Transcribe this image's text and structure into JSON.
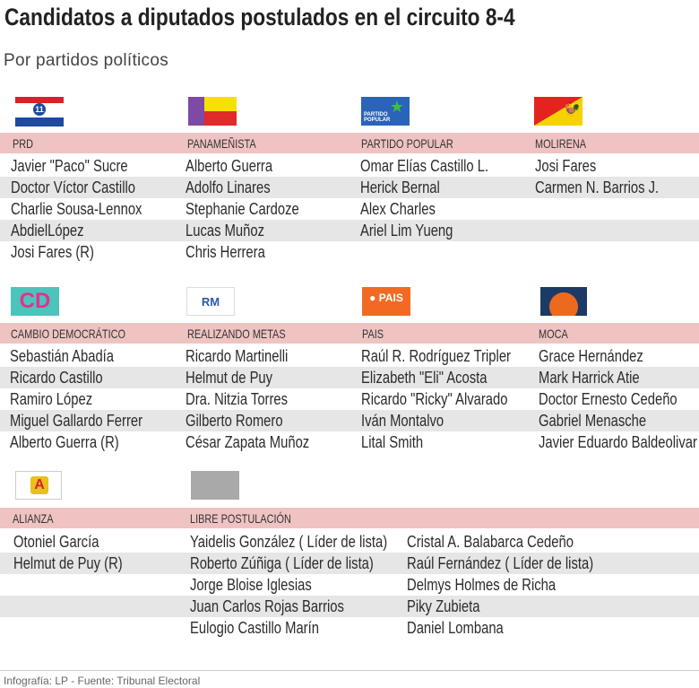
{
  "title": "Candidatos a diputados postulados en el circuito 8-4",
  "subtitle": "Por partidos políticos",
  "sections": [
    {
      "parties": [
        {
          "name": "PRD",
          "logo": "prd-logo",
          "logo_text": "REVOLUCIONARIO 11 DEMOCRÁTICO",
          "candidates": [
            "Javier \"Paco\" Sucre",
            "Doctor Víctor Castillo",
            "Charlie Sousa-Lennox",
            "AbdielLópez",
            "Josi Fares (R)"
          ]
        },
        {
          "name": "PANAMEÑISTA",
          "logo": "panamenista-logo",
          "candidates": [
            "Alberto Guerra",
            "Adolfo Linares",
            "Stephanie Cardoze",
            "Lucas Muñoz",
            "Chris Herrera"
          ]
        },
        {
          "name": "PARTIDO POPULAR",
          "logo": "partido-popular-logo",
          "logo_text": "PARTIDO POPULAR",
          "candidates": [
            "Omar Elías Castillo L.",
            "Herick Bernal",
            "Alex  Charles",
            "Ariel  Lim Yueng"
          ]
        },
        {
          "name": "MOLIRENA",
          "logo": "molirena-logo",
          "logo_text": "MOLIRENA",
          "candidates": [
            "Josi Fares",
            "Carmen N. Barrios J."
          ]
        }
      ]
    },
    {
      "parties": [
        {
          "name": "CAMBIO DEMOCRÁTICO",
          "logo": "cd-logo",
          "logo_text": "CD",
          "candidates": [
            "Sebastián Abadía",
            "Ricardo Castillo",
            "Ramiro López",
            "Miguel Gallardo Ferrer",
            "Alberto Guerra (R)"
          ]
        },
        {
          "name": "REALIZANDO METAS",
          "logo": "rm-logo",
          "logo_text": "RM",
          "candidates": [
            "Ricardo Martinelli",
            "Helmut de Puy",
            "Dra. Nitzia Torres",
            "Gilberto Romero",
            "César Zapata Muñoz"
          ]
        },
        {
          "name": "PAIS",
          "logo": "pais-logo",
          "logo_text": "PAIS",
          "candidates": [
            "Raúl R. Rodríguez Tripler",
            "Elizabeth \"Eli\" Acosta",
            "Ricardo \"Ricky\" Alvarado",
            "Iván Montalvo",
            "Lital Smith"
          ]
        },
        {
          "name": "MOCA",
          "logo": "moca-logo",
          "logo_text": "OTRO CAMINO",
          "candidates": [
            "Grace Hernández",
            "Mark Harrick Atie",
            "Doctor Ernesto Cedeño",
            "Gabriel Menasche",
            "Javier Eduardo Baldeolivar"
          ]
        }
      ]
    },
    {
      "parties": [
        {
          "name": "ALIANZA",
          "logo": "alianza-logo",
          "candidates": [
            "Otoniel García",
            "Helmut de Puy (R)"
          ]
        },
        {
          "name": "LIBRE POSTULACIÓN",
          "logo": "libre-postulacion-logo",
          "candidates": [
            "Yaidelis González ( Líder de lista)",
            "Roberto Zúñiga ( Líder de lista)",
            "Jorge Bloise Iglesias",
            "Juan Carlos Rojas Barrios",
            "Eulogio Castillo Marín"
          ],
          "candidates_col2": [
            "Cristal A. Balabarca Cedeño",
            "Raúl Fernández ( Líder de lista)",
            "Delmys Holmes de Richa",
            "Piky  Zubieta",
            "Daniel Lombana"
          ]
        }
      ]
    }
  ],
  "footer": "Infografía: LP - Fuente: Tribunal Electoral",
  "colors": {
    "band": "#f0c3c3",
    "stripe": "#e6e6e6"
  }
}
